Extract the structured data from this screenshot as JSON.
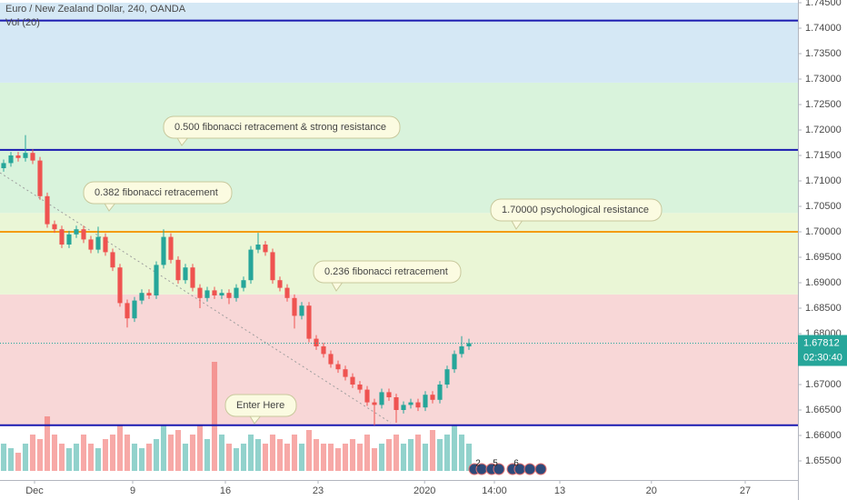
{
  "chart_data": {
    "type": "candlestick",
    "title": "Euro / New Zealand Dollar, 240, OANDA",
    "subtitle": "Vol (20)",
    "ylim": [
      1.655,
      1.745
    ],
    "yticks": [
      {
        "value": 1.655,
        "label": "1.65500"
      },
      {
        "value": 1.66,
        "label": "1.66000"
      },
      {
        "value": 1.665,
        "label": "1.66500"
      },
      {
        "value": 1.67,
        "label": "1.67000"
      },
      {
        "value": 1.675,
        "label": "1.67500"
      },
      {
        "value": 1.68,
        "label": "1.68000"
      },
      {
        "value": 1.685,
        "label": "1.68500"
      },
      {
        "value": 1.69,
        "label": "1.69000"
      },
      {
        "value": 1.695,
        "label": "1.69500"
      },
      {
        "value": 1.7,
        "label": "1.70000"
      },
      {
        "value": 1.705,
        "label": "1.70500"
      },
      {
        "value": 1.71,
        "label": "1.71000"
      },
      {
        "value": 1.715,
        "label": "1.71500"
      },
      {
        "value": 1.72,
        "label": "1.72000"
      },
      {
        "value": 1.725,
        "label": "1.72500"
      },
      {
        "value": 1.73,
        "label": "1.73000"
      },
      {
        "value": 1.735,
        "label": "1.73500"
      },
      {
        "value": 1.74,
        "label": "1.74000"
      },
      {
        "value": 1.745,
        "label": "1.74500"
      }
    ],
    "xlim": [
      -0.5,
      109.25
    ],
    "xticks": [
      {
        "value": 4.25,
        "label": "Dec"
      },
      {
        "value": 17.75,
        "label": "9"
      },
      {
        "value": 30.5,
        "label": "16"
      },
      {
        "value": 43.25,
        "label": "23"
      },
      {
        "value": 57.9,
        "label": "2020"
      },
      {
        "value": 67.5,
        "label": "14:00"
      },
      {
        "value": 76.5,
        "label": "13"
      },
      {
        "value": 89.1,
        "label": "20"
      },
      {
        "value": 102,
        "label": "27"
      }
    ],
    "up_color": "#26a69a",
    "down_color": "#ef5350",
    "open": [
      1.7125,
      1.7135,
      1.715,
      1.7145,
      1.7155,
      1.714,
      1.707,
      1.7015,
      1.7005,
      1.6975,
      1.6995,
      1.7005,
      1.6985,
      1.6965,
      1.699,
      1.696,
      1.693,
      1.686,
      1.683,
      1.6865,
      1.688,
      1.6875,
      1.6935,
      1.699,
      1.6945,
      1.6905,
      1.693,
      1.689,
      1.687,
      1.6885,
      1.6875,
      1.688,
      1.687,
      1.689,
      1.6905,
      1.6965,
      1.6975,
      1.696,
      1.6905,
      1.689,
      1.687,
      1.6835,
      1.6855,
      1.679,
      1.6775,
      1.676,
      1.674,
      1.673,
      1.6715,
      1.67,
      1.669,
      1.6665,
      1.666,
      1.6685,
      1.6675,
      1.665,
      1.666,
      1.6665,
      1.6655,
      1.668,
      1.667,
      1.67,
      1.673,
      1.676,
      1.6775
    ],
    "high": [
      1.7142,
      1.7157,
      1.7157,
      1.719,
      1.7162,
      1.7147,
      1.7077,
      1.7022,
      1.7012,
      1.7002,
      1.7012,
      1.7012,
      1.6992,
      1.701,
      1.6997,
      1.6967,
      1.6937,
      1.6867,
      1.6872,
      1.6887,
      1.6887,
      1.6942,
      1.7005,
      1.6997,
      1.6952,
      1.6937,
      1.6937,
      1.6897,
      1.6892,
      1.6892,
      1.6887,
      1.6887,
      1.6897,
      1.6912,
      1.6972,
      1.6998,
      1.6982,
      1.6967,
      1.6912,
      1.6897,
      1.6877,
      1.6862,
      1.6862,
      1.6797,
      1.6782,
      1.6767,
      1.6747,
      1.6737,
      1.6722,
      1.6707,
      1.6697,
      1.6672,
      1.6692,
      1.6692,
      1.6682,
      1.6667,
      1.6672,
      1.6672,
      1.6687,
      1.6687,
      1.6707,
      1.6737,
      1.6767,
      1.6795,
      1.679
    ],
    "low": [
      1.7118,
      1.7128,
      1.7138,
      1.7138,
      1.7133,
      1.7063,
      1.7008,
      1.6998,
      1.6968,
      1.6968,
      1.6988,
      1.6978,
      1.6958,
      1.6958,
      1.6953,
      1.6923,
      1.6853,
      1.6812,
      1.6823,
      1.6858,
      1.6868,
      1.6868,
      1.6928,
      1.6938,
      1.6898,
      1.6898,
      1.6883,
      1.685,
      1.6863,
      1.6868,
      1.6868,
      1.6858,
      1.6863,
      1.6883,
      1.6898,
      1.6958,
      1.6953,
      1.6898,
      1.6883,
      1.6863,
      1.681,
      1.6828,
      1.6783,
      1.6768,
      1.6753,
      1.6733,
      1.6723,
      1.6708,
      1.6693,
      1.6683,
      1.6658,
      1.662,
      1.6653,
      1.6668,
      1.6625,
      1.6643,
      1.6653,
      1.6648,
      1.6648,
      1.6663,
      1.6663,
      1.6693,
      1.6723,
      1.6753,
      1.6768
    ],
    "close": [
      1.7135,
      1.715,
      1.7145,
      1.7155,
      1.714,
      1.707,
      1.7015,
      1.7005,
      1.6975,
      1.6995,
      1.7005,
      1.6985,
      1.6965,
      1.699,
      1.696,
      1.693,
      1.686,
      1.683,
      1.6865,
      1.688,
      1.6875,
      1.6935,
      1.699,
      1.6945,
      1.6905,
      1.693,
      1.689,
      1.687,
      1.6885,
      1.6875,
      1.688,
      1.687,
      1.689,
      1.6905,
      1.6965,
      1.6975,
      1.696,
      1.6905,
      1.689,
      1.687,
      1.6835,
      1.6855,
      1.679,
      1.6775,
      1.676,
      1.674,
      1.673,
      1.6715,
      1.67,
      1.669,
      1.6665,
      1.666,
      1.6685,
      1.6675,
      1.665,
      1.666,
      1.6665,
      1.6655,
      1.668,
      1.667,
      1.67,
      1.673,
      1.676,
      1.6775,
      1.67812
    ],
    "volume": [
      3,
      2.5,
      2,
      3,
      4,
      3.5,
      6,
      4,
      3,
      2.5,
      3,
      4,
      3,
      2.5,
      3.5,
      4,
      5,
      4,
      3,
      2.5,
      3,
      3.5,
      5,
      4,
      4.5,
      3,
      4,
      5,
      3.5,
      12,
      4,
      3,
      2.5,
      3,
      4,
      3.5,
      3,
      4,
      3.5,
      3,
      4,
      3,
      4.5,
      3.5,
      3,
      3,
      2.5,
      3,
      3.5,
      3,
      4,
      2.5,
      3,
      3.5,
      4,
      3,
      3.5,
      4,
      3,
      4.5,
      3.5,
      4,
      5,
      4,
      3
    ],
    "zones": [
      {
        "from": 1.662,
        "to": 1.6877,
        "color": "#f8d7d7"
      },
      {
        "from": 1.6877,
        "to": 1.7037,
        "color": "#eaf6d6"
      },
      {
        "from": 1.7037,
        "to": 1.7293,
        "color": "#d9f3dc"
      },
      {
        "from": 1.7293,
        "to": 1.745,
        "color": "#d5e8f5"
      }
    ],
    "hlines": [
      {
        "value": 1.7415,
        "color": "#1a1ab0"
      },
      {
        "value": 1.7161,
        "color": "#1a1ab0"
      },
      {
        "value": 1.7,
        "color": "#f39c12"
      },
      {
        "value": 1.662,
        "color": "#1a1ab0"
      }
    ],
    "trendline": {
      "x": [
        -0.5,
        53.25
      ],
      "y": [
        1.7116,
        1.6625
      ]
    },
    "last_price": 1.67812,
    "last_price_label": "1.67812",
    "countdown": "02:30:40",
    "annotations": [
      "0.500 fibonacci retracement & strong resistance",
      "0.382 fibonacci retracement",
      "1.70000 psychological resistance",
      "0.236 fibonacci retracement",
      "Enter Here"
    ],
    "events": [
      "2",
      "5",
      "6"
    ]
  }
}
